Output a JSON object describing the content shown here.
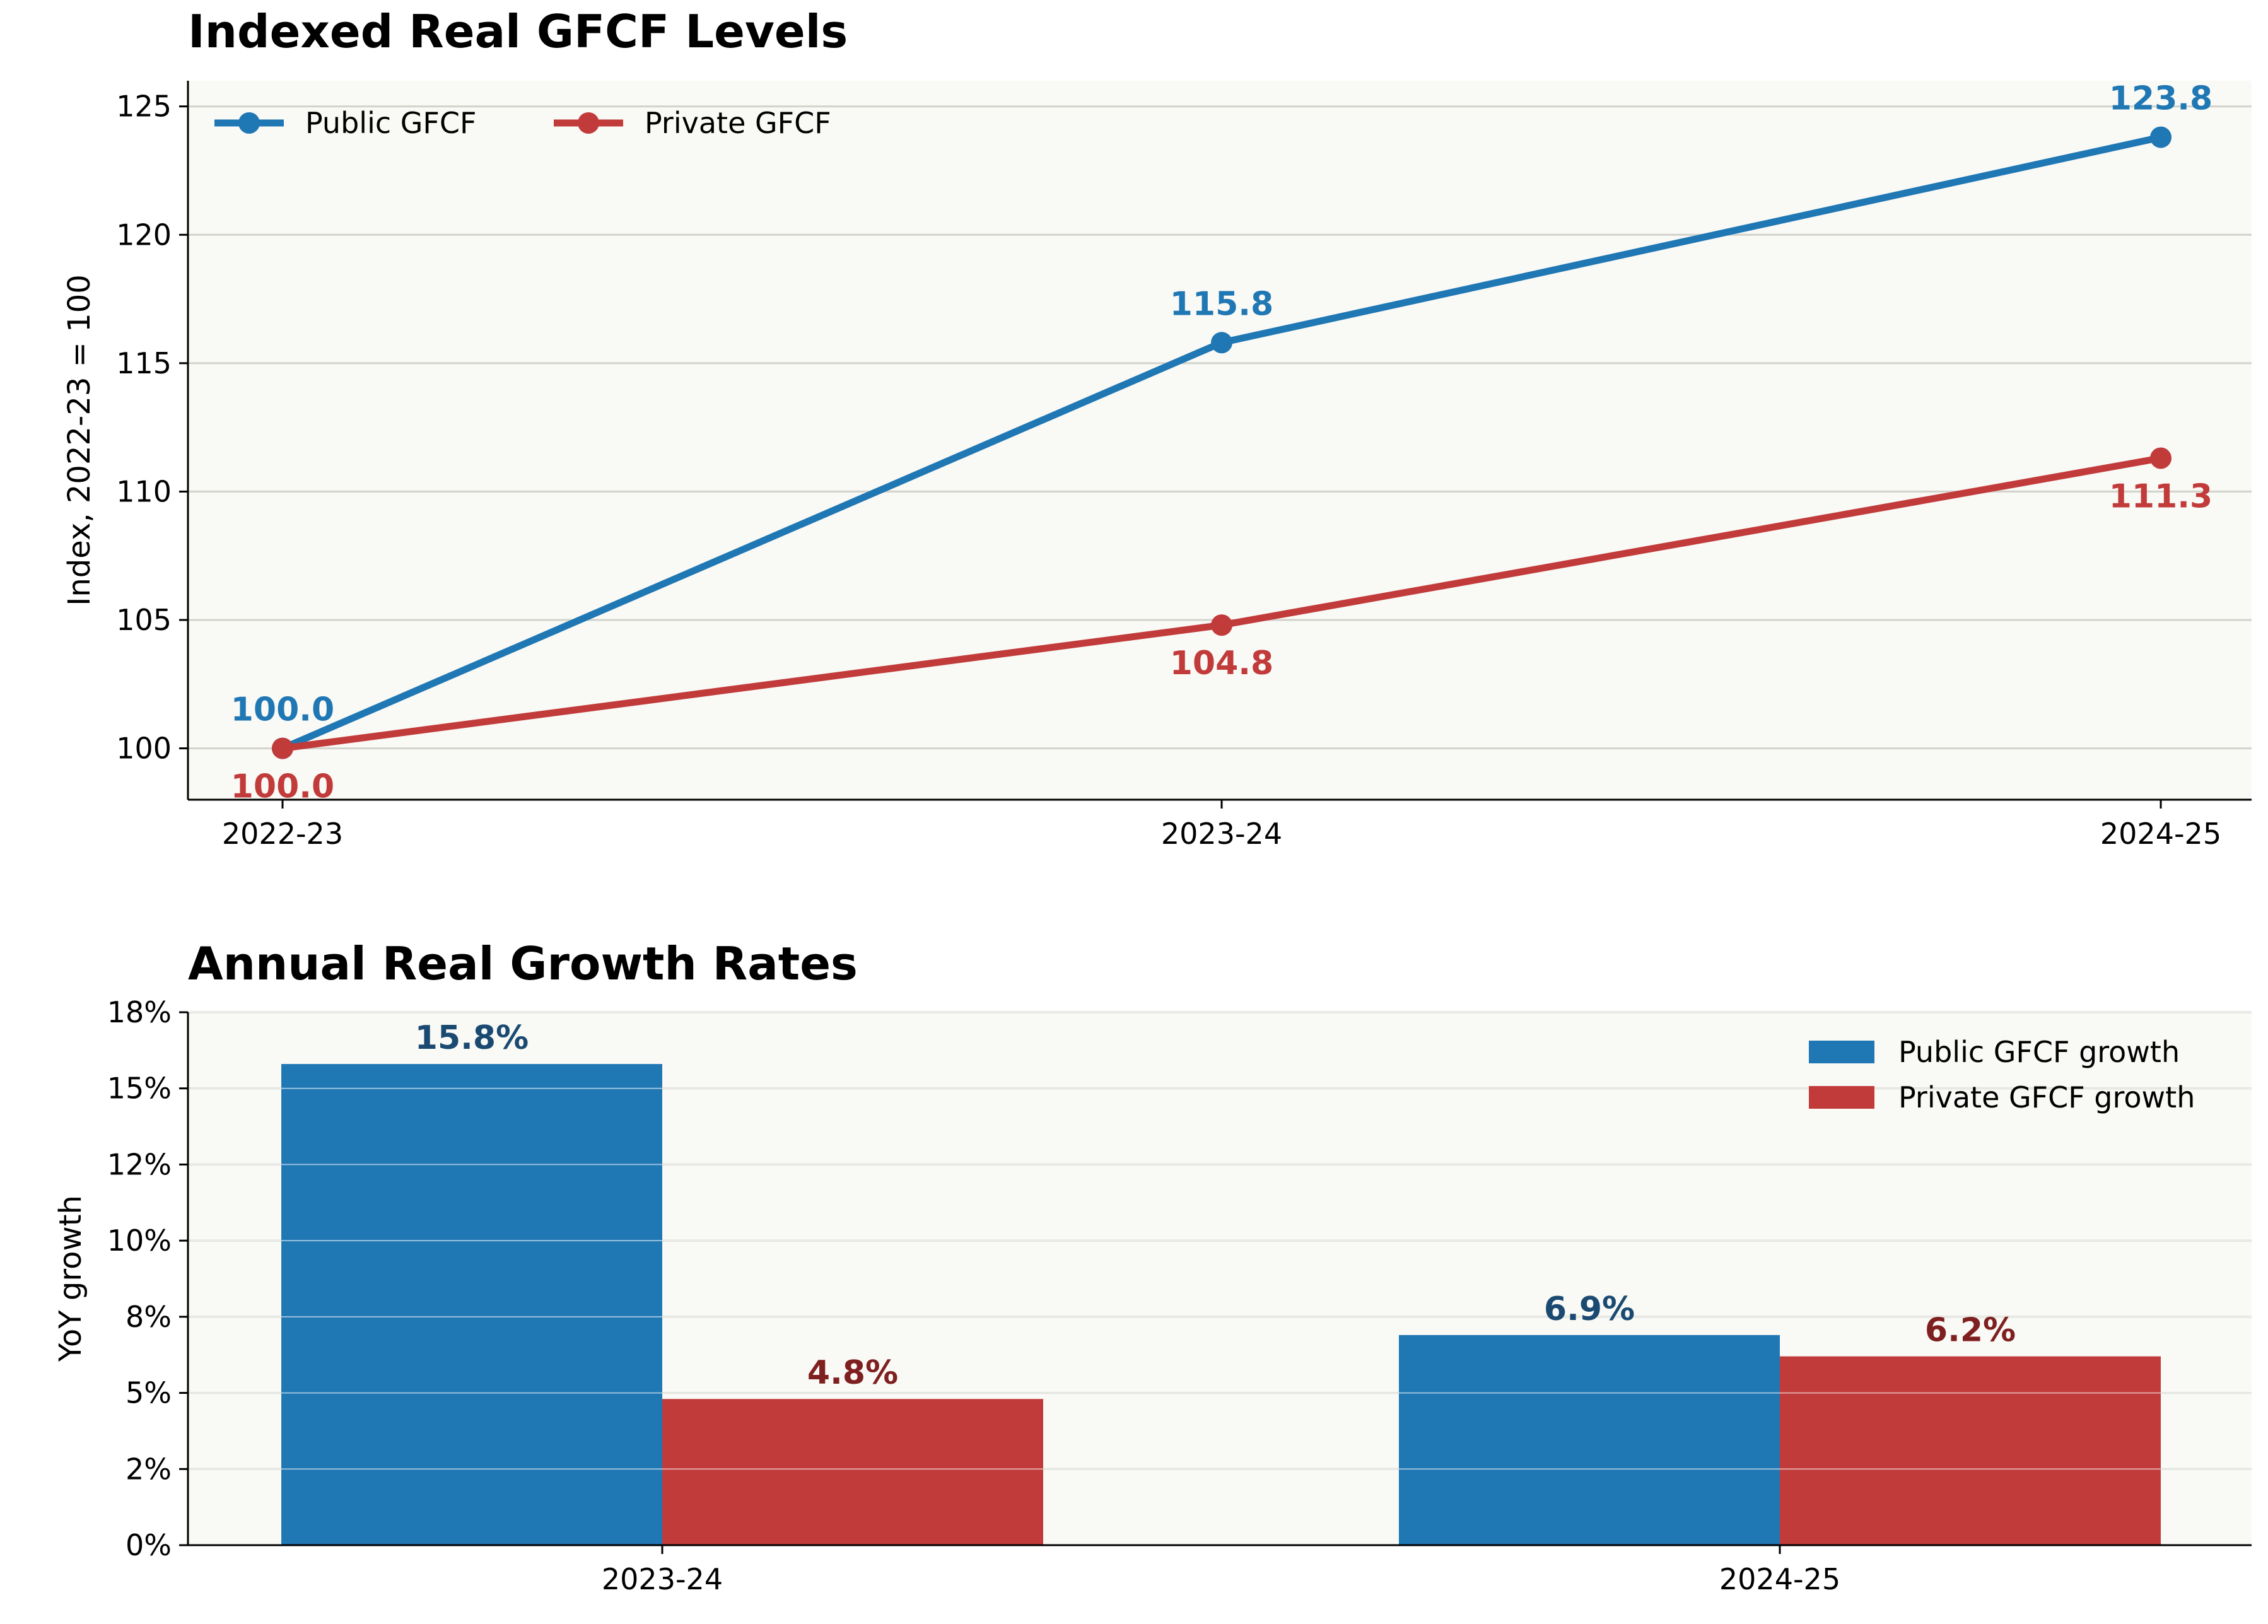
{
  "chart_data": [
    {
      "type": "line",
      "title": "Indexed Real GFCF Levels",
      "xlabel": "",
      "ylabel": "Index, 2022-23 = 100",
      "categories": [
        "2022-23",
        "2023-24",
        "2024-25"
      ],
      "ylim": [
        98,
        126
      ],
      "yticks": [
        100,
        105,
        110,
        115,
        120,
        125
      ],
      "ytick_labels": [
        "100",
        "105",
        "110",
        "115",
        "120",
        "125"
      ],
      "grid": "horizontal",
      "legend": "top-left",
      "series": [
        {
          "name": "Public GFCF",
          "color": "#1f77b4",
          "label_color": "#1f77b4",
          "values": [
            100.0,
            115.8,
            123.8
          ],
          "labels": [
            "100.0",
            "115.8",
            "123.8"
          ],
          "label_pos": [
            "above",
            "above",
            "above"
          ]
        },
        {
          "name": "Private GFCF",
          "color": "#c23b3b",
          "label_color": "#c23b3b",
          "values": [
            100.0,
            104.8,
            111.3
          ],
          "labels": [
            "100.0",
            "104.8",
            "111.3"
          ],
          "label_pos": [
            "below",
            "below",
            "below"
          ]
        }
      ]
    },
    {
      "type": "bar",
      "title": "Annual Real Growth Rates",
      "xlabel": "",
      "ylabel": "YoY growth",
      "categories": [
        "2023-24",
        "2024-25"
      ],
      "ylim": [
        0,
        17.5
      ],
      "yticks": [
        0,
        2.5,
        5,
        7.5,
        10,
        12.5,
        15,
        17.5
      ],
      "ytick_labels": [
        "0%",
        "2%",
        "5%",
        "8%",
        "10%",
        "12%",
        "15%",
        "18%"
      ],
      "grid": "horizontal",
      "legend": "top-right",
      "series": [
        {
          "name": "Public GFCF growth",
          "color": "#1f77b4",
          "label_color": "#1a4a72",
          "values": [
            15.8,
            6.9
          ],
          "labels": [
            "15.8%",
            "6.9%"
          ]
        },
        {
          "name": "Private GFCF growth",
          "color": "#c23b3b",
          "label_color": "#7f2020",
          "values": [
            4.8,
            6.2
          ],
          "labels": [
            "4.8%",
            "6.2%"
          ]
        }
      ]
    }
  ],
  "colors": {
    "plot_background": "#f9f9f5",
    "grid": "#d3d3cc",
    "axis": "#000000"
  }
}
